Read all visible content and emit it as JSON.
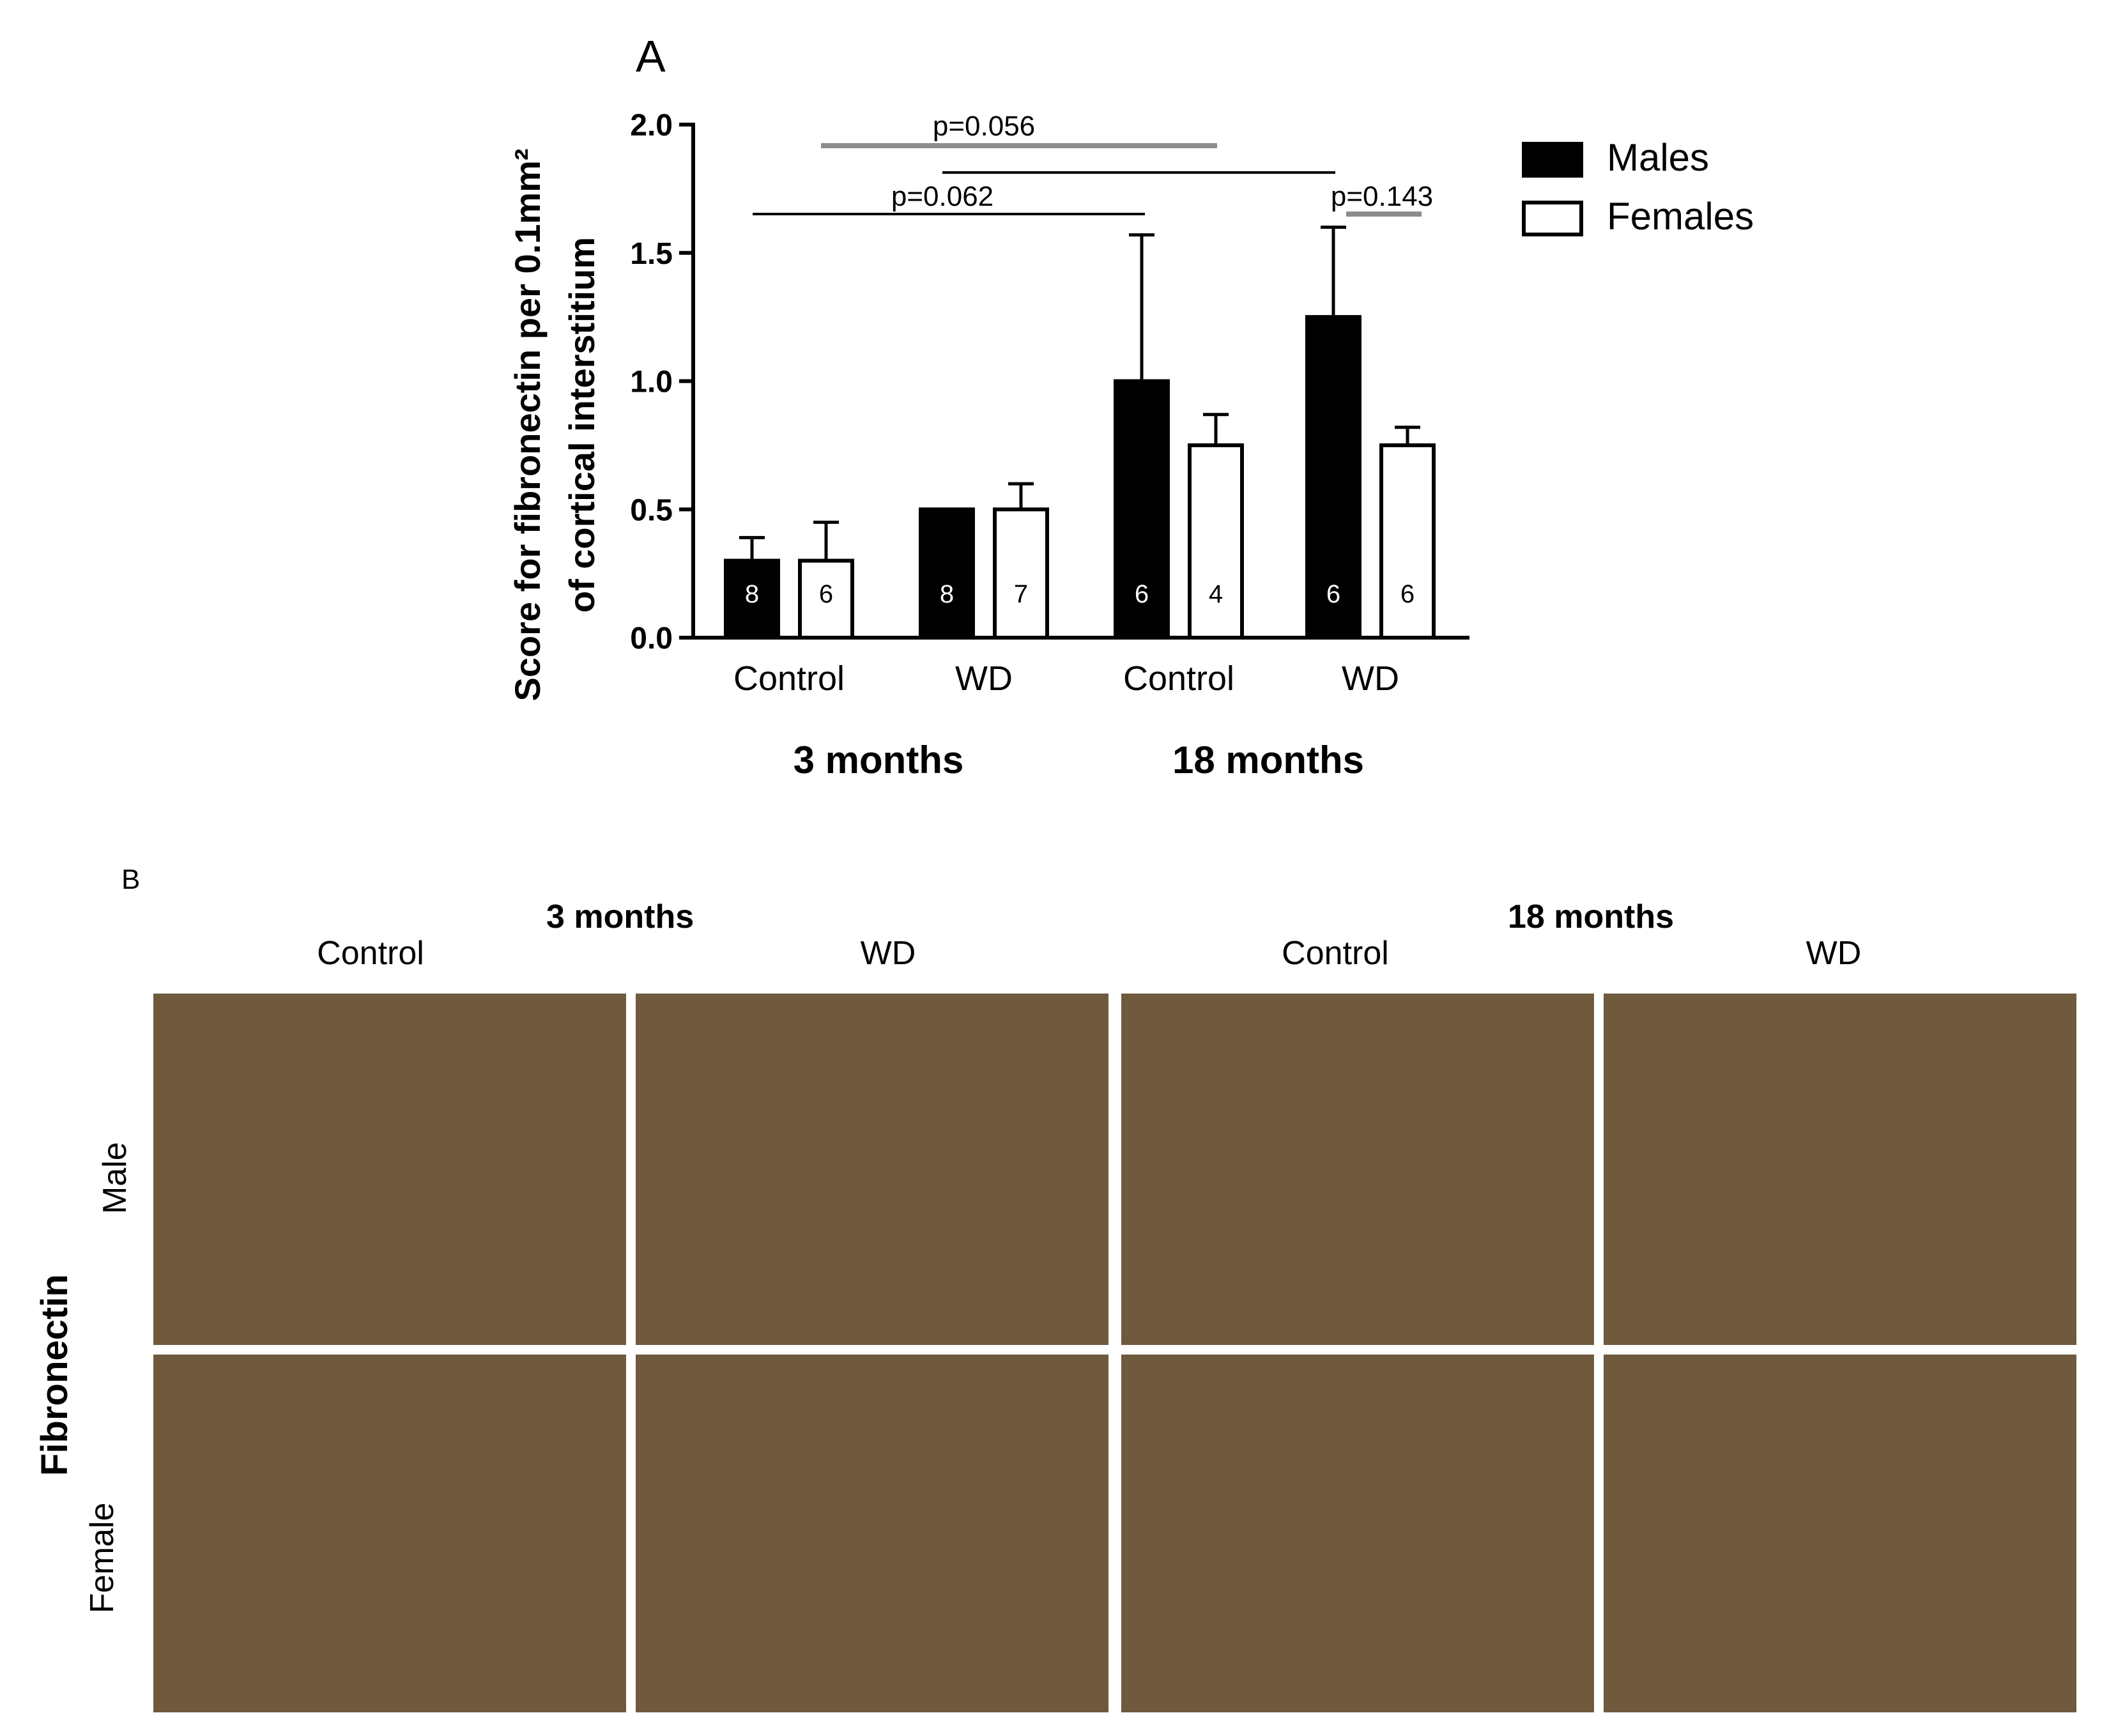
{
  "panel_a_letter": "A",
  "chart_data": {
    "type": "bar",
    "ylabel_line1": "Score for fibronectin per 0.1mm²",
    "ylabel_line2": "of cortical interstitium",
    "ylim": [
      0,
      2.0
    ],
    "yticks": [
      "0.0",
      "0.5",
      "1.0",
      "1.5",
      "2.0"
    ],
    "categories": [
      "Control",
      "WD",
      "Control",
      "WD"
    ],
    "age_groups": [
      "3 months",
      "18 months"
    ],
    "series": [
      {
        "name": "Males",
        "color": "#000000",
        "values": [
          0.3,
          0.5,
          1.0,
          1.25
        ],
        "errors": [
          0.09,
          0.0,
          0.57,
          0.35
        ],
        "n": [
          "8",
          "8",
          "6",
          "6"
        ]
      },
      {
        "name": "Females",
        "color": "#ffffff",
        "values": [
          0.3,
          0.5,
          0.75,
          0.75
        ],
        "errors": [
          0.15,
          0.1,
          0.12,
          0.07
        ],
        "n": [
          "6",
          "7",
          "4",
          "6"
        ]
      }
    ],
    "comparisons": [
      {
        "label": "p=0.056",
        "color": "#8c8c8c"
      },
      {
        "label": "",
        "color": "#000000"
      },
      {
        "label": "p=0.062",
        "color": "#000000"
      },
      {
        "label": "p=0.143",
        "color": "#8c8c8c"
      }
    ],
    "legend_position": "top-right"
  },
  "panel_b": {
    "letter": "B",
    "groups": [
      "3 months",
      "18 months"
    ],
    "columns": [
      "Control",
      "WD",
      "Control",
      "WD"
    ],
    "rows": [
      "Male",
      "Female"
    ],
    "side_label": "Fibronectin"
  }
}
